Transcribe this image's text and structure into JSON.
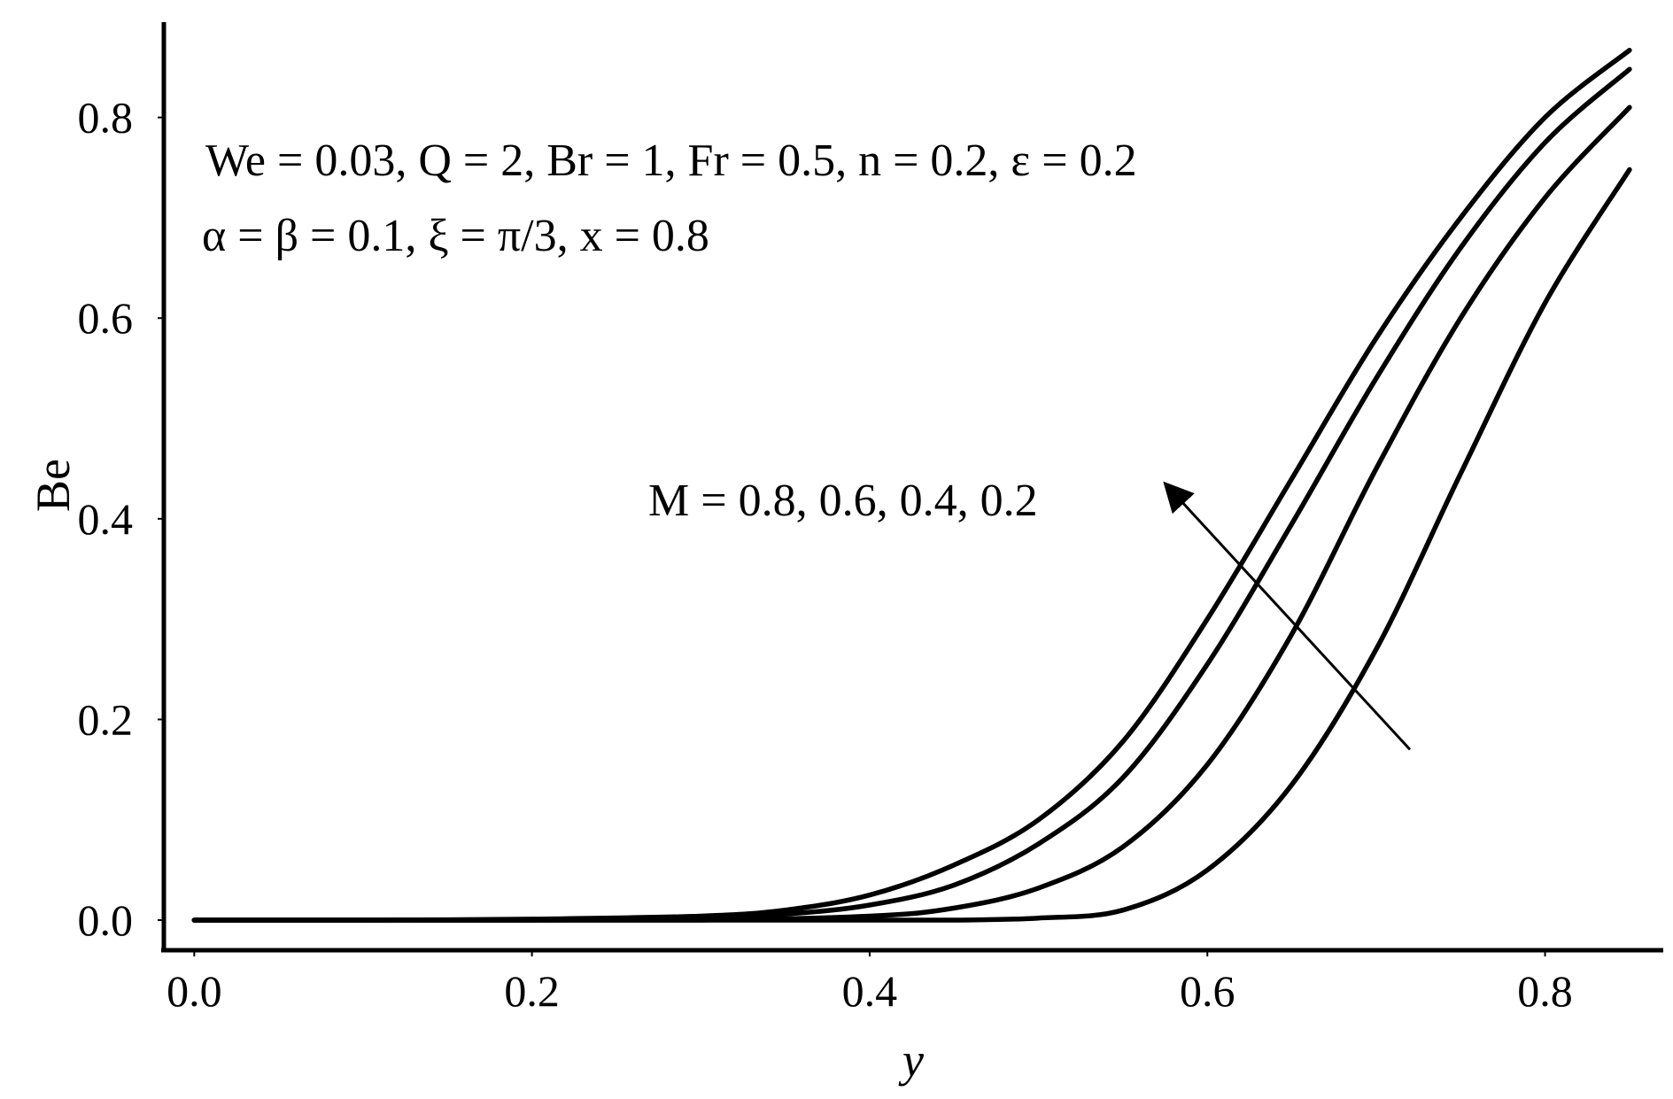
{
  "chart_data": {
    "type": "line",
    "xlabel": "y",
    "ylabel": "Be",
    "xlim": [
      -0.018,
      0.87
    ],
    "ylim": [
      -0.03,
      0.895
    ],
    "xticks": [
      0.0,
      0.2,
      0.4,
      0.6,
      0.8
    ],
    "yticks": [
      0.0,
      0.2,
      0.4,
      0.6,
      0.8
    ],
    "xtick_labels": [
      "0.0",
      "0.2",
      "0.4",
      "0.6",
      "0.8"
    ],
    "ytick_labels": [
      "0.0",
      "0.2",
      "0.4",
      "0.6",
      "0.8"
    ],
    "grid": false,
    "legend": "none",
    "annotations": {
      "params_line1": "We = 0.03, Q = 2, Br = 1, Fr = 0.5, n = 0.2, ε = 0.2",
      "params_line2": "α = β = 0.1, ξ = π/3, x = 0.8",
      "arrow_label": "M = 0.8, 0.6, 0.4, 0.2"
    },
    "arrow": {
      "from": [
        0.72,
        0.17
      ],
      "to": [
        0.575,
        0.435
      ]
    },
    "series": [
      {
        "x": [
          0,
          0.1,
          0.2,
          0.3,
          0.35,
          0.4,
          0.45,
          0.5,
          0.55,
          0.6,
          0.65,
          0.7,
          0.75,
          0.8,
          0.85
        ],
        "values": [
          0,
          0,
          0.001,
          0.004,
          0.01,
          0.025,
          0.055,
          0.1,
          0.178,
          0.3,
          0.44,
          0.58,
          0.7,
          0.8,
          0.867
        ]
      },
      {
        "x": [
          0,
          0.1,
          0.2,
          0.3,
          0.35,
          0.4,
          0.45,
          0.5,
          0.55,
          0.6,
          0.65,
          0.7,
          0.75,
          0.8,
          0.85
        ],
        "values": [
          0,
          0,
          0,
          0.002,
          0.006,
          0.015,
          0.035,
          0.076,
          0.142,
          0.255,
          0.395,
          0.54,
          0.67,
          0.775,
          0.848
        ]
      },
      {
        "x": [
          0,
          0.1,
          0.2,
          0.3,
          0.4,
          0.45,
          0.5,
          0.55,
          0.6,
          0.65,
          0.7,
          0.75,
          0.8,
          0.85
        ],
        "values": [
          0,
          0,
          0,
          0,
          0.004,
          0.012,
          0.032,
          0.073,
          0.155,
          0.285,
          0.45,
          0.6,
          0.72,
          0.81
        ]
      },
      {
        "x": [
          0,
          0.1,
          0.2,
          0.3,
          0.4,
          0.45,
          0.5,
          0.55,
          0.6,
          0.65,
          0.7,
          0.75,
          0.8,
          0.85
        ],
        "values": [
          0,
          0,
          0,
          0,
          0,
          0,
          0.002,
          0.01,
          0.05,
          0.135,
          0.27,
          0.445,
          0.615,
          0.748
        ]
      }
    ]
  }
}
